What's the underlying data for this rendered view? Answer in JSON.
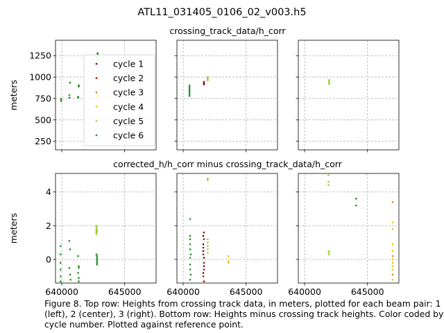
{
  "figure": {
    "suptitle": "ATL11_031405_0106_02_v003.h5",
    "row_titles": [
      "crossing_track_data/h_corr",
      "corrected_h/h_corr minus crossing_track_data/h_corr"
    ],
    "caption": "Figure 8. Top row: Heights from crossing track data, in meters, plotted for each beam pair: 1 (left), 2 (center), 3 (right). Bottom row: Heights minus crossing track heights. Color coded by cycle number. Plotted against reference point."
  },
  "colors": {
    "cycle 1": "#4b0b2e",
    "cycle 2": "#b30000",
    "cycle 3": "#e08000",
    "cycle 4": "#e6c200",
    "cycle 5": "#9acd32",
    "cycle 6": "#1a8c1a"
  },
  "chart_data": [
    {
      "type": "scatter",
      "panel": "top-left",
      "title": "crossing_track_data/h_corr",
      "ylabel": "meters",
      "xlim": [
        639500,
        647500
      ],
      "ylim": [
        150,
        1430
      ],
      "yticks": [
        250,
        500,
        750,
        1000,
        1250
      ],
      "xticks": [
        640000,
        645000
      ],
      "grid": true,
      "legend": {
        "location": "upper-right",
        "entries": [
          "cycle 1",
          "cycle 2",
          "cycle 3",
          "cycle 4",
          "cycle 5",
          "cycle 6"
        ]
      },
      "series": [
        {
          "name": "cycle 5",
          "points": [
            [
              642800,
              760
            ],
            [
              642800,
              780
            ]
          ]
        },
        {
          "name": "cycle 6",
          "points": [
            [
              639950,
              720
            ],
            [
              639950,
              735
            ],
            [
              639950,
              745
            ],
            [
              640600,
              760
            ],
            [
              640600,
              790
            ],
            [
              640650,
              935
            ],
            [
              641300,
              760
            ],
            [
              641300,
              770
            ],
            [
              641350,
              890
            ],
            [
              641350,
              905
            ],
            [
              642850,
              1240
            ],
            [
              642850,
              1255
            ],
            [
              642850,
              1270
            ],
            [
              642850,
              1280
            ]
          ]
        }
      ]
    },
    {
      "type": "scatter",
      "panel": "top-center",
      "xlim": [
        639500,
        647500
      ],
      "ylim": [
        150,
        1430
      ],
      "yticks": [
        250,
        500,
        750,
        1000,
        1250
      ],
      "grid": true,
      "series": [
        {
          "name": "cycle 1",
          "points": [
            [
              641650,
              915
            ],
            [
              641650,
              930
            ]
          ]
        },
        {
          "name": "cycle 2",
          "points": [
            [
              641650,
              920
            ],
            [
              641650,
              945
            ]
          ]
        },
        {
          "name": "cycle 5",
          "points": [
            [
              641950,
              960
            ],
            [
              641950,
              975
            ],
            [
              641950,
              990
            ],
            [
              641950,
              1000
            ]
          ]
        },
        {
          "name": "cycle 6",
          "points": [
            [
              640500,
              780
            ],
            [
              640500,
              800
            ],
            [
              640500,
              820
            ],
            [
              640500,
              840
            ],
            [
              640500,
              860
            ],
            [
              640500,
              880
            ],
            [
              640500,
              900
            ]
          ]
        }
      ]
    },
    {
      "type": "scatter",
      "panel": "top-right",
      "xlim": [
        639500,
        647500
      ],
      "ylim": [
        150,
        1430
      ],
      "yticks": [
        250,
        500,
        750,
        1000,
        1250
      ],
      "grid": true,
      "series": [
        {
          "name": "cycle 5",
          "points": [
            [
              641950,
              920
            ],
            [
              641950,
              935
            ],
            [
              641950,
              950
            ],
            [
              641950,
              965
            ]
          ]
        }
      ]
    },
    {
      "type": "scatter",
      "panel": "bottom-left",
      "title": "corrected_h/h_corr minus crossing_track_data/h_corr",
      "ylabel": "meters",
      "xlim": [
        639500,
        647500
      ],
      "ylim": [
        -1.4,
        5.1
      ],
      "yticks": [
        0,
        2,
        4
      ],
      "xticks": [
        640000,
        645000
      ],
      "xticklabels": [
        "640000",
        "645000"
      ],
      "grid": true,
      "series": [
        {
          "name": "cycle 5",
          "points": [
            [
              642750,
              1.5
            ],
            [
              642750,
              1.6
            ],
            [
              642750,
              1.7
            ],
            [
              642750,
              1.8
            ],
            [
              642750,
              1.9
            ],
            [
              642750,
              2.0
            ],
            [
              642800,
              1.65
            ],
            [
              642800,
              1.75
            ]
          ]
        },
        {
          "name": "cycle 6",
          "points": [
            [
              639900,
              0.8
            ],
            [
              639900,
              0.3
            ],
            [
              639900,
              -0.2
            ],
            [
              639900,
              -0.6
            ],
            [
              639900,
              -1.0
            ],
            [
              639900,
              -1.3
            ],
            [
              640600,
              1.1
            ],
            [
              640650,
              0.6
            ],
            [
              640600,
              -0.5
            ],
            [
              640650,
              -0.9
            ],
            [
              640700,
              -1.2
            ],
            [
              641300,
              0.2
            ],
            [
              641350,
              -0.4
            ],
            [
              641350,
              -0.5
            ],
            [
              641300,
              -0.8
            ],
            [
              641350,
              -1.1
            ],
            [
              641350,
              -1.3
            ],
            [
              642800,
              0.2
            ],
            [
              642800,
              0.1
            ],
            [
              642800,
              0.0
            ],
            [
              642800,
              -0.1
            ],
            [
              642800,
              -0.2
            ],
            [
              642800,
              -0.3
            ],
            [
              642750,
              0.3
            ]
          ]
        }
      ]
    },
    {
      "type": "scatter",
      "panel": "bottom-center",
      "xlim": [
        639500,
        647500
      ],
      "ylim": [
        -1.4,
        5.1
      ],
      "yticks": [
        0,
        2,
        4
      ],
      "xticks": [
        640000,
        645000
      ],
      "xticklabels": [
        "640000",
        "645000"
      ],
      "grid": true,
      "series": [
        {
          "name": "cycle 1",
          "points": [
            [
              641600,
              1.4
            ],
            [
              641600,
              0.9
            ],
            [
              641600,
              0.5
            ],
            [
              641650,
              0.1
            ],
            [
              641650,
              -0.4
            ],
            [
              641600,
              -0.8
            ]
          ]
        },
        {
          "name": "cycle 2",
          "points": [
            [
              641650,
              1.6
            ],
            [
              641650,
              1.2
            ],
            [
              641600,
              0.7
            ],
            [
              641600,
              0.3
            ],
            [
              641650,
              -0.2
            ],
            [
              641650,
              -0.6
            ],
            [
              641600,
              -1.0
            ],
            [
              641650,
              -1.3
            ]
          ]
        },
        {
          "name": "cycle 4",
          "points": [
            [
              643600,
              0.2
            ],
            [
              643600,
              -0.1
            ],
            [
              643600,
              -0.2
            ]
          ]
        },
        {
          "name": "cycle 5",
          "points": [
            [
              641950,
              4.8
            ],
            [
              641950,
              4.7
            ],
            [
              641950,
              1.2
            ],
            [
              641950,
              1.0
            ],
            [
              641950,
              0.8
            ],
            [
              641950,
              0.6
            ],
            [
              641950,
              0.4
            ]
          ]
        },
        {
          "name": "cycle 6",
          "points": [
            [
              640550,
              2.4
            ],
            [
              640550,
              1.4
            ],
            [
              640550,
              1.2
            ],
            [
              640550,
              0.9
            ],
            [
              640550,
              0.6
            ],
            [
              640600,
              0.3
            ],
            [
              640550,
              0.1
            ],
            [
              640550,
              -0.3
            ],
            [
              640550,
              -0.6
            ],
            [
              640600,
              -0.9
            ],
            [
              640550,
              -1.2
            ]
          ]
        }
      ]
    },
    {
      "type": "scatter",
      "panel": "bottom-right",
      "xlim": [
        639500,
        647500
      ],
      "ylim": [
        -1.4,
        5.1
      ],
      "yticks": [
        0,
        2,
        4
      ],
      "xticks": [
        640000,
        645000
      ],
      "xticklabels": [
        "640000",
        "645000"
      ],
      "grid": true,
      "series": [
        {
          "name": "cycle 3",
          "points": [
            [
              647000,
              3.4
            ],
            [
              647000,
              0.2
            ],
            [
              647000,
              -0.9
            ]
          ]
        },
        {
          "name": "cycle 4",
          "points": [
            [
              647000,
              2.2
            ],
            [
              647000,
              1.8
            ],
            [
              647000,
              0.9
            ],
            [
              647000,
              0.5
            ],
            [
              647000,
              0.0
            ],
            [
              647000,
              -0.2
            ],
            [
              647000,
              -0.4
            ],
            [
              647000,
              -0.6
            ],
            [
              647000,
              -1.2
            ]
          ]
        },
        {
          "name": "cycle 5",
          "points": [
            [
              641900,
              5.0
            ],
            [
              641900,
              4.6
            ],
            [
              641900,
              4.4
            ],
            [
              641950,
              0.5
            ],
            [
              641900,
              0.4
            ],
            [
              641950,
              0.3
            ]
          ]
        },
        {
          "name": "cycle 6",
          "points": [
            [
              644100,
              3.6
            ],
            [
              644100,
              3.2
            ]
          ]
        }
      ]
    }
  ]
}
